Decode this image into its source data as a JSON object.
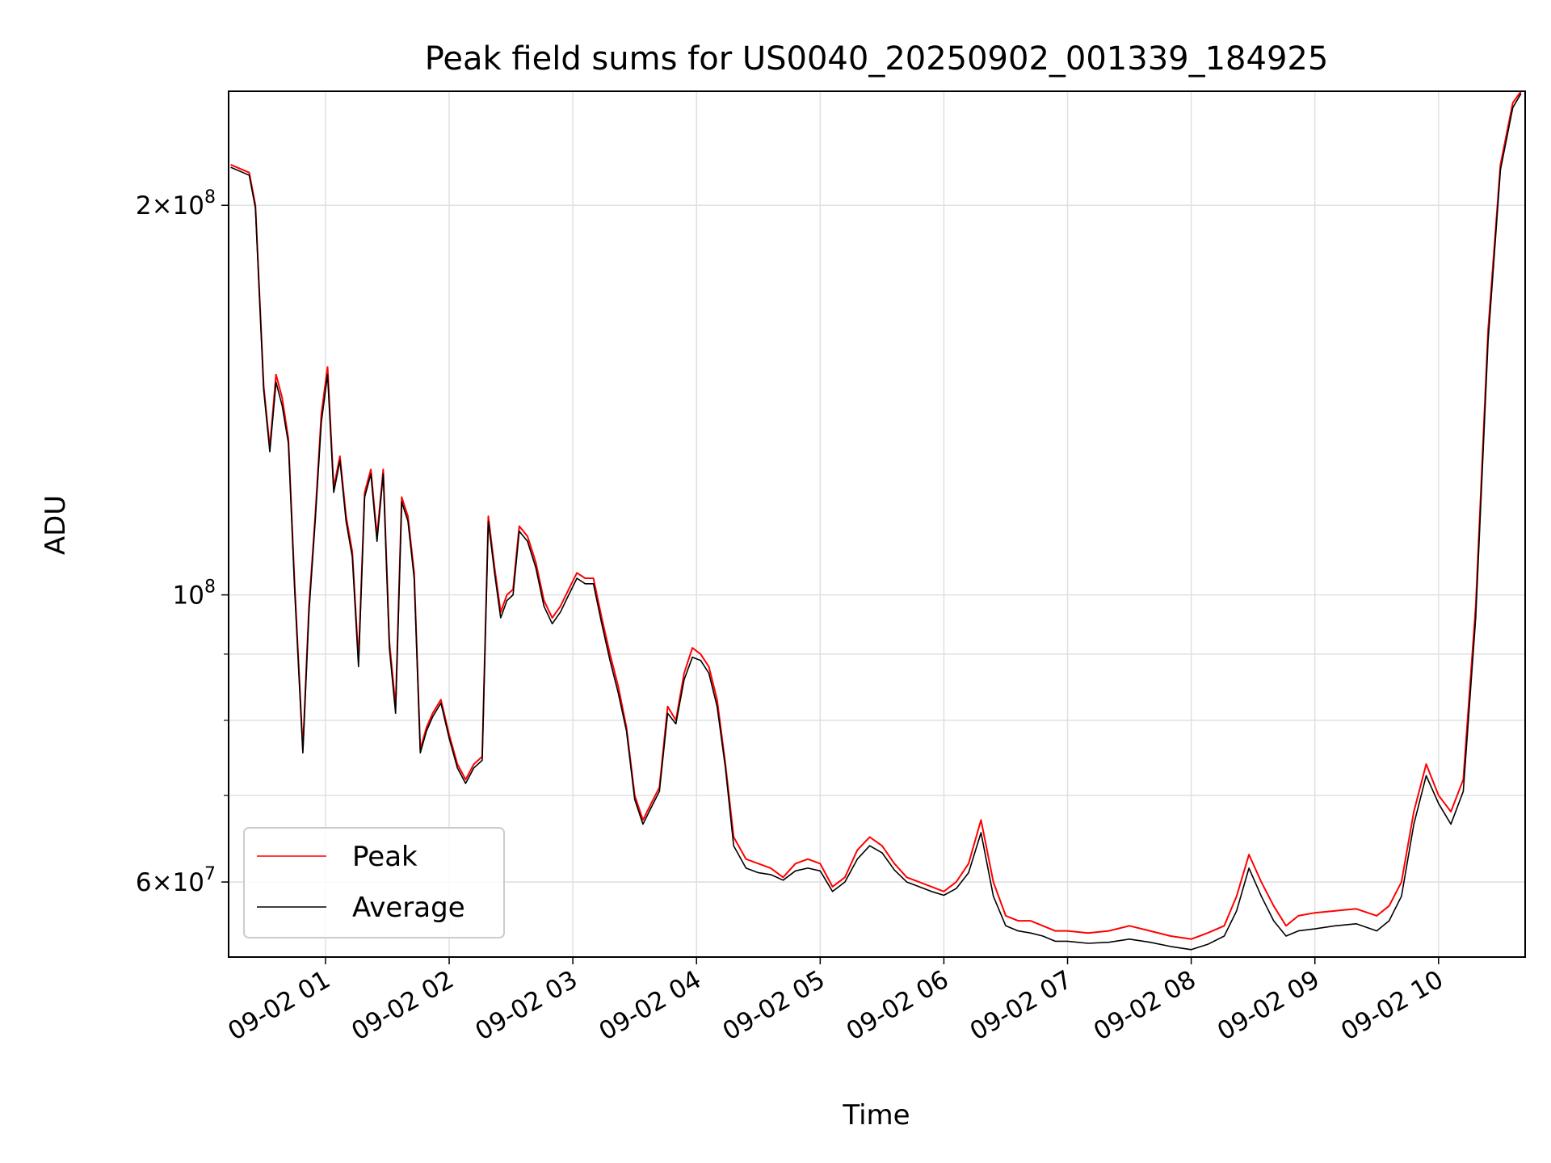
{
  "chart_data": {
    "type": "line",
    "title": "Peak field sums for US0040_20250902_001339_184925",
    "xlabel": "Time",
    "ylabel": "ADU",
    "yscale": "log",
    "xlim": [
      "2025-09-02 00:13",
      "2025-09-02 10:42"
    ],
    "ylim": [
      52500000,
      245000000
    ],
    "grid": true,
    "legend_position": "lower-left",
    "x_ticks": [
      "09-02 01",
      "09-02 02",
      "09-02 03",
      "09-02 04",
      "09-02 05",
      "09-02 06",
      "09-02 07",
      "09-02 08",
      "09-02 09",
      "09-02 10"
    ],
    "y_ticks": [
      {
        "value": 60000000,
        "label": "6×10",
        "exp": "7"
      },
      {
        "value": 100000000,
        "label": "10",
        "exp": "8"
      },
      {
        "value": 200000000,
        "label": "2×10",
        "exp": "8"
      }
    ],
    "colors": {
      "peak": "#ff0000",
      "average": "#000000",
      "grid": "#e0e0e0"
    },
    "x": [
      "00:14",
      "00:20",
      "00:23",
      "00:26",
      "00:30",
      "00:33",
      "00:36",
      "00:39",
      "00:42",
      "00:45",
      "00:49",
      "00:52",
      "00:55",
      "00:58",
      "01:01",
      "01:04",
      "01:07",
      "01:10",
      "01:13",
      "01:16",
      "01:19",
      "01:22",
      "01:25",
      "01:28",
      "01:31",
      "01:34",
      "01:37",
      "01:40",
      "01:43",
      "01:46",
      "01:49",
      "01:52",
      "01:56",
      "02:00",
      "02:04",
      "02:08",
      "02:12",
      "02:16",
      "02:19",
      "02:22",
      "02:25",
      "02:28",
      "02:31",
      "02:34",
      "02:38",
      "02:42",
      "02:46",
      "02:50",
      "02:54",
      "02:58",
      "03:02",
      "03:06",
      "03:10",
      "03:14",
      "03:18",
      "03:22",
      "03:26",
      "03:30",
      "03:34",
      "03:38",
      "03:42",
      "03:46",
      "03:50",
      "03:54",
      "03:58",
      "04:02",
      "04:06",
      "04:10",
      "04:14",
      "04:18",
      "04:24",
      "04:30",
      "04:36",
      "04:42",
      "04:48",
      "04:54",
      "05:00",
      "05:06",
      "05:12",
      "05:18",
      "05:24",
      "05:30",
      "05:36",
      "05:42",
      "05:48",
      "05:54",
      "06:00",
      "06:06",
      "06:12",
      "06:18",
      "06:24",
      "06:30",
      "06:36",
      "06:42",
      "06:48",
      "06:54",
      "07:00",
      "07:10",
      "07:20",
      "07:30",
      "07:40",
      "07:50",
      "08:00",
      "08:08",
      "08:16",
      "08:22",
      "08:28",
      "08:34",
      "08:40",
      "08:46",
      "08:52",
      "09:00",
      "09:10",
      "09:20",
      "09:30",
      "09:36",
      "09:42",
      "09:48",
      "09:54",
      "10:00",
      "10:06",
      "10:12",
      "10:18",
      "10:24",
      "10:30",
      "10:36",
      "10:40"
    ],
    "series": [
      {
        "name": "Peak",
        "values": [
          215000000,
          213000000,
          212000000,
          200000000,
          145000000,
          130000000,
          148000000,
          142000000,
          132000000,
          102000000,
          76000000,
          98000000,
          115000000,
          138000000,
          150000000,
          121000000,
          128000000,
          115000000,
          108000000,
          89000000,
          120000000,
          125000000,
          111000000,
          125000000,
          92000000,
          82000000,
          119000000,
          115000000,
          104000000,
          76000000,
          79000000,
          81000000,
          83000000,
          78000000,
          74000000,
          72000000,
          74000000,
          75000000,
          115000000,
          105000000,
          97000000,
          100000000,
          101000000,
          113000000,
          111000000,
          106000000,
          99000000,
          96000000,
          98000000,
          101000000,
          104000000,
          103000000,
          103000000,
          96000000,
          90000000,
          85000000,
          79000000,
          70000000,
          67000000,
          69000000,
          71000000,
          82000000,
          80000000,
          87000000,
          91000000,
          90000000,
          88000000,
          83000000,
          74000000,
          65000000,
          62500000,
          62000000,
          61500000,
          60500000,
          62000000,
          62500000,
          62000000,
          59500000,
          60500000,
          63500000,
          65000000,
          64000000,
          62000000,
          60500000,
          60000000,
          59500000,
          59000000,
          60000000,
          62000000,
          67000000,
          60000000,
          56500000,
          56000000,
          56000000,
          55500000,
          55000000,
          55000000,
          54800000,
          55000000,
          55500000,
          55000000,
          54500000,
          54200000,
          54800000,
          55500000,
          58500000,
          63000000,
          60000000,
          57500000,
          55500000,
          56500000,
          56800000,
          57000000,
          57200000,
          56500000,
          57500000,
          60000000,
          68000000,
          74000000,
          70000000,
          68000000,
          72000000,
          98000000,
          160000000,
          215000000,
          240000000,
          245000000
        ]
      },
      {
        "name": "Average",
        "values": [
          214000000,
          212000000,
          211000000,
          199000000,
          144000000,
          129000000,
          146000000,
          140000000,
          131000000,
          101000000,
          75500000,
          97000000,
          114000000,
          136000000,
          148000000,
          120000000,
          127000000,
          114000000,
          107000000,
          88000000,
          119000000,
          124000000,
          110000000,
          124000000,
          91000000,
          81000000,
          118000000,
          114000000,
          103000000,
          75500000,
          78500000,
          80500000,
          82500000,
          77500000,
          73500000,
          71500000,
          73500000,
          74500000,
          114000000,
          104000000,
          96000000,
          99000000,
          100000000,
          112000000,
          110000000,
          105000000,
          98000000,
          95000000,
          97000000,
          100000000,
          103000000,
          102000000,
          102000000,
          95000000,
          89000000,
          84000000,
          78500000,
          69500000,
          66500000,
          68500000,
          70500000,
          81000000,
          79500000,
          86000000,
          89500000,
          89000000,
          87000000,
          82000000,
          73500000,
          64000000,
          61500000,
          61000000,
          60800000,
          60200000,
          61200000,
          61500000,
          61200000,
          59000000,
          60000000,
          62500000,
          64000000,
          63200000,
          61300000,
          60000000,
          59500000,
          59000000,
          58600000,
          59300000,
          61000000,
          65500000,
          58500000,
          55500000,
          55000000,
          54800000,
          54500000,
          54000000,
          54000000,
          53800000,
          53900000,
          54200000,
          53900000,
          53500000,
          53200000,
          53700000,
          54500000,
          57000000,
          61500000,
          58500000,
          56000000,
          54500000,
          55000000,
          55200000,
          55500000,
          55700000,
          55000000,
          56000000,
          58500000,
          66500000,
          72500000,
          69000000,
          66500000,
          70500000,
          96000000,
          157000000,
          213000000,
          238000000,
          244000000
        ]
      }
    ]
  }
}
